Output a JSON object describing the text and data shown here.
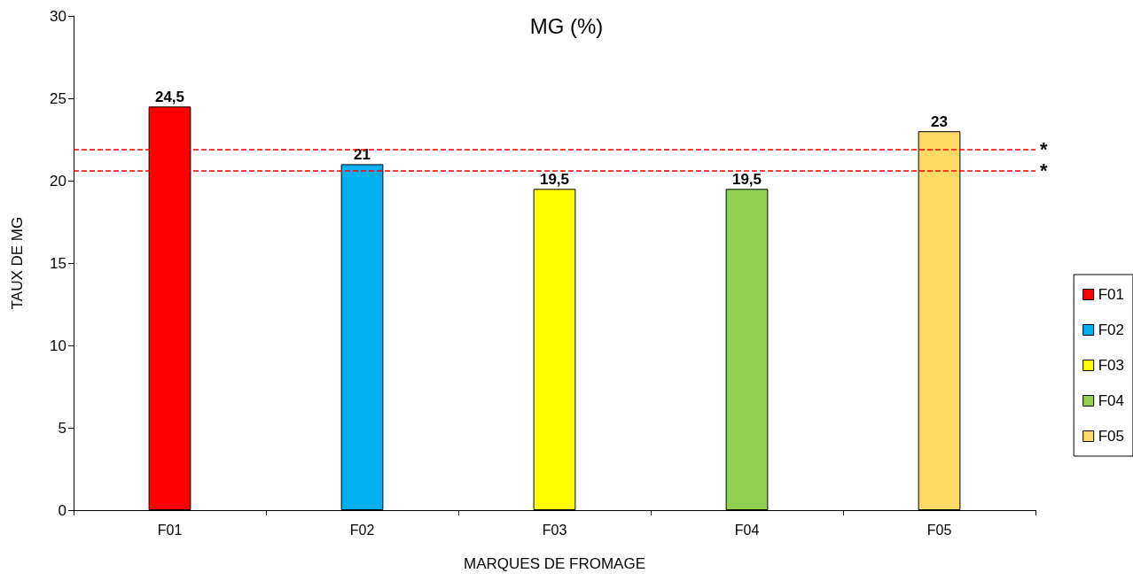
{
  "chart_data": {
    "type": "bar",
    "title": "MG (%)",
    "xlabel": "MARQUES DE FROMAGE",
    "ylabel": "TAUX DE MG",
    "categories": [
      "F01",
      "F02",
      "F03",
      "F04",
      "F05"
    ],
    "series": [
      {
        "name": "F01",
        "color": "#ff0000",
        "values": [
          24.5,
          null,
          null,
          null,
          null
        ],
        "value_labels": [
          "24,5",
          null,
          null,
          null,
          null
        ]
      },
      {
        "name": "F02",
        "color": "#00b0f0",
        "values": [
          null,
          21,
          null,
          null,
          null
        ],
        "value_labels": [
          null,
          "21",
          null,
          null,
          null
        ]
      },
      {
        "name": "F03",
        "color": "#ffff00",
        "values": [
          null,
          null,
          19.5,
          null,
          null
        ],
        "value_labels": [
          null,
          null,
          "19,5",
          null,
          null
        ]
      },
      {
        "name": "F04",
        "color": "#92d050",
        "values": [
          null,
          null,
          null,
          19.5,
          null
        ],
        "value_labels": [
          null,
          null,
          null,
          "19,5",
          null
        ]
      },
      {
        "name": "F05",
        "color": "#ffd966",
        "values": [
          null,
          null,
          null,
          null,
          23
        ],
        "value_labels": [
          null,
          null,
          null,
          null,
          "23"
        ]
      }
    ],
    "ylim": [
      0,
      30
    ],
    "yticks": [
      0,
      5,
      10,
      15,
      20,
      25,
      30
    ],
    "grid": false,
    "legend": "right",
    "ref_lines": [
      {
        "axis": "y",
        "value": 21.9,
        "label": "*",
        "color": "#ff0000",
        "line_style": "dashed"
      },
      {
        "axis": "y",
        "value": 20.6,
        "label": "*",
        "color": "#ff0000",
        "line_style": "dashed"
      }
    ]
  }
}
